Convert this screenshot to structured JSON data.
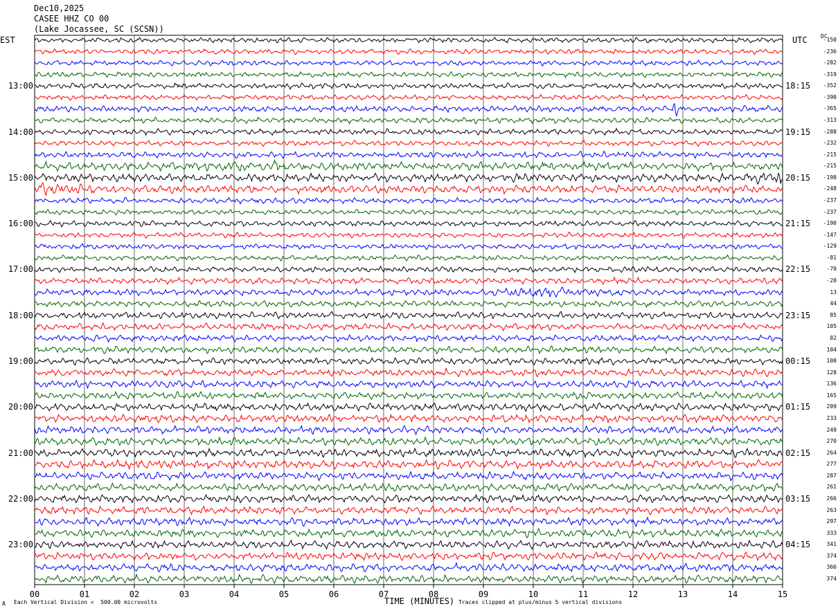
{
  "header": {
    "date": "Dec10,2025",
    "station": "CASEE HHZ CO 00",
    "location": "(Lake Jocassee, SC (SCSN))"
  },
  "axes": {
    "left_title": "EST",
    "right_title": "UTC",
    "dc_title": "DC",
    "xlabel": "TIME (MINUTES)",
    "xticks": [
      "00",
      "01",
      "02",
      "03",
      "04",
      "05",
      "06",
      "07",
      "08",
      "09",
      "10",
      "11",
      "12",
      "13",
      "14",
      "15"
    ]
  },
  "footer": {
    "scale_note": "Each Vertical Division =  500.00 microvolts",
    "clip_note": "Traces clipped at plus/minus 5 vertical divisions",
    "mark": "A"
  },
  "colors": {
    "trace_cycle": [
      "#000000",
      "#ff0000",
      "#0000ff",
      "#006400"
    ],
    "grid": "#000000"
  },
  "chart_data": {
    "type": "line",
    "title": "",
    "xlabel": "TIME (MINUTES)",
    "xlim": [
      0,
      15
    ],
    "trace_count": 48,
    "trace_minutes": 15,
    "left_hour_labels": [
      "13:00",
      "14:00",
      "15:00",
      "16:00",
      "17:00",
      "18:00",
      "19:00",
      "20:00",
      "21:00",
      "22:00",
      "23:00"
    ],
    "right_hour_labels": [
      "18:15",
      "19:15",
      "20:15",
      "21:15",
      "22:15",
      "23:15",
      "00:15",
      "01:15",
      "02:15",
      "03:15",
      "04:15"
    ],
    "dc_offsets": [
      -150,
      -236,
      -282,
      -319,
      -352,
      -390,
      -365,
      -313,
      -288,
      -232,
      -215,
      -215,
      -198,
      -248,
      -237,
      -237,
      -190,
      -147,
      -129,
      -81,
      -70,
      -20,
      13,
      44,
      85,
      105,
      82,
      104,
      108,
      128,
      136,
      165,
      209,
      233,
      249,
      270,
      264,
      277,
      287,
      261,
      266,
      263,
      297,
      333,
      341,
      374,
      366,
      374
    ],
    "trace_amplitude_relative": [
      1,
      1,
      1,
      1,
      1.1,
      1,
      1.2,
      1.1,
      1.1,
      1,
      1.2,
      1.6,
      1.6,
      1.6,
      1.1,
      1,
      1.1,
      1,
      1,
      1,
      1.1,
      1.2,
      1.2,
      1.2,
      1.3,
      1.3,
      1.2,
      1.3,
      1.3,
      1.4,
      1.4,
      1.4,
      1.5,
      1.5,
      1.5,
      1.5,
      1.6,
      1.6,
      1.5,
      1.5,
      1.5,
      1.5,
      1.5,
      1.5,
      1.5,
      1.5,
      1.5,
      1.5
    ],
    "events": [
      {
        "trace": 6,
        "minute": 12.85,
        "type": "spike"
      },
      {
        "trace": 11,
        "minute": 4.5,
        "type": "burst"
      },
      {
        "trace": 12,
        "minute": 14.8,
        "type": "burst"
      },
      {
        "trace": 13,
        "minute": 0.1,
        "type": "burst"
      },
      {
        "trace": 22,
        "minute": 10.2,
        "type": "burst"
      }
    ]
  }
}
